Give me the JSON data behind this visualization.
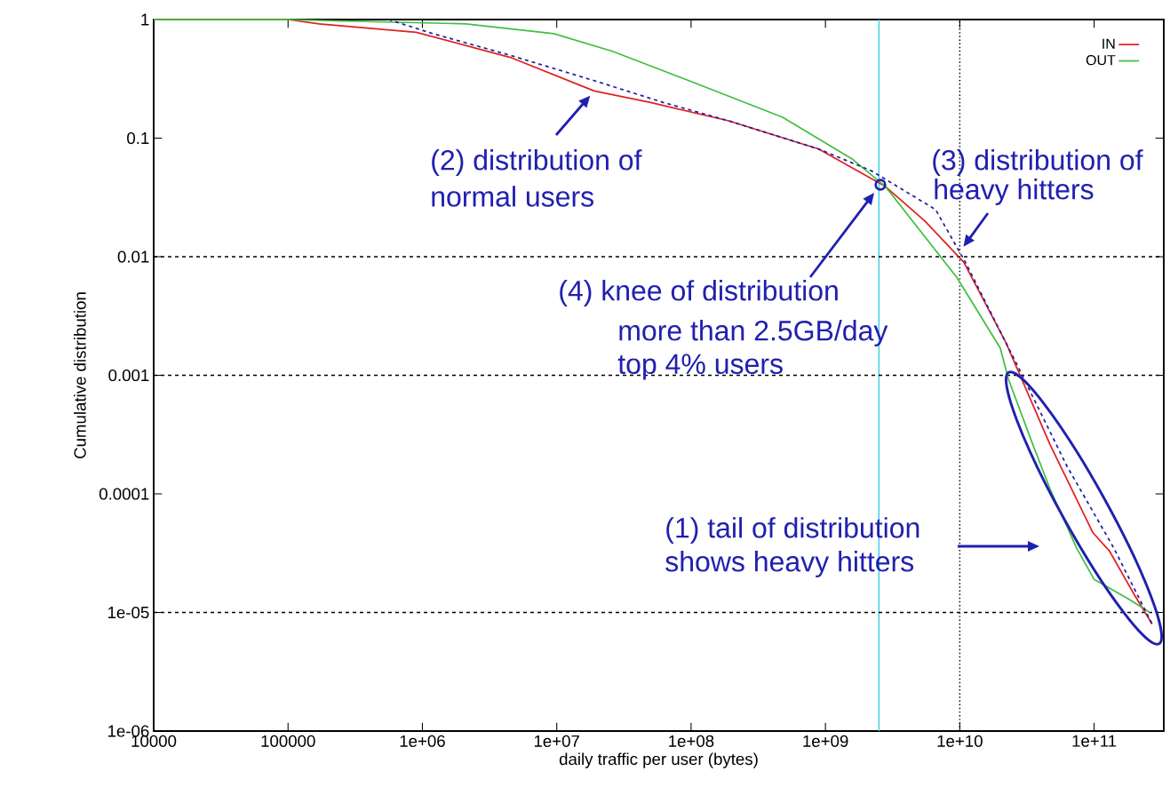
{
  "chart_data": {
    "type": "line",
    "xlabel": "daily traffic per user (bytes)",
    "ylabel": "Cumulative distribution",
    "log": "xy",
    "xlim": [
      10000,
      330000000000
    ],
    "ylim": [
      1e-06,
      1
    ],
    "xticks": [
      {
        "value": 10000,
        "label": "10000"
      },
      {
        "value": 100000,
        "label": "100000"
      },
      {
        "value": 1000000,
        "label": "1e+06"
      },
      {
        "value": 10000000,
        "label": "1e+07"
      },
      {
        "value": 100000000,
        "label": "1e+08"
      },
      {
        "value": 1000000000,
        "label": "1e+09"
      },
      {
        "value": 10000000000,
        "label": "1e+10"
      },
      {
        "value": 100000000000,
        "label": "1e+11"
      }
    ],
    "yticks": [
      1,
      0.1,
      0.01,
      0.001,
      0.0001,
      {
        "value": 1e-05,
        "label": "1e-05"
      },
      {
        "value": 1e-06,
        "label": "1e-06"
      }
    ],
    "legend": "top right",
    "marker": "none",
    "series": [
      {
        "name": "IN",
        "color": "#e02020",
        "line_style": "solid",
        "x": [
          10000,
          100000,
          170000,
          900000,
          4500000,
          19000000,
          50000000,
          190000000,
          890000000,
          2800000000,
          5500000000,
          10700000000,
          22000000000,
          47000000000,
          98000000000,
          130000000000,
          200000000000,
          270000000000
        ],
        "values": [
          1,
          1,
          0.92,
          0.78,
          0.48,
          0.25,
          0.2,
          0.14,
          0.081,
          0.039,
          0.02,
          0.009,
          0.0019,
          0.00026,
          4.7e-05,
          3.3e-05,
          1.4e-05,
          8e-06
        ]
      },
      {
        "name": "OUT",
        "color": "#40c040",
        "line_style": "solid",
        "x": [
          10000,
          100000,
          2100000,
          9500000,
          26000000,
          66000000,
          100000000,
          480000000,
          1600000000,
          2800000000,
          9500000000,
          20000000000,
          23000000000,
          35000000000,
          47000000000,
          74000000000,
          100000000000,
          180000000000,
          260000000000
        ],
        "values": [
          1,
          1,
          0.92,
          0.76,
          0.54,
          0.36,
          0.3,
          0.15,
          0.066,
          0.039,
          0.0067,
          0.0017,
          0.00093,
          0.00026,
          0.00011,
          3.5e-05,
          1.9e-05,
          1.3e-05,
          1e-05
        ]
      },
      {
        "color": "#2020a0",
        "line_style": "dashed",
        "x": [
          560000,
          1200000,
          4500000,
          20000000,
          62000000,
          190000000,
          890000000,
          2200000000,
          6600000000,
          11000000000,
          26000000000,
          63000000000,
          140000000000,
          270000000000
        ],
        "values": [
          1,
          0.76,
          0.5,
          0.3,
          0.2,
          0.14,
          0.081,
          0.053,
          0.025,
          0.009,
          0.0013,
          0.00017,
          3.5e-05,
          8e-06
        ]
      }
    ],
    "ref_lines": [
      {
        "axis": "x",
        "value": 2500000000,
        "color": "#40d0e0",
        "line_style": "solid"
      },
      {
        "axis": "x",
        "value": 10000000000,
        "color": "#000000",
        "line_style": "dotted"
      },
      {
        "axis": "y",
        "value": 0.01,
        "color": "#000000",
        "line_style": "dashed"
      },
      {
        "axis": "y",
        "value": 0.001,
        "color": "#000000",
        "line_style": "dashed"
      },
      {
        "axis": "y",
        "value": 1e-05,
        "color": "#000000",
        "line_style": "dashed"
      }
    ],
    "annotations": [
      {
        "text": "(2) distribution of",
        "x": 19000000,
        "y": 0.25
      },
      "normal users",
      "(3) distribution of",
      {
        "text": "heavy hitters",
        "x": 10000000000,
        "y": 0.011
      },
      "(4) knee of distribution",
      "more than 2.5GB/day",
      "top 4% users",
      "(1) tail of distribution",
      "shows heavy hitters"
    ]
  }
}
